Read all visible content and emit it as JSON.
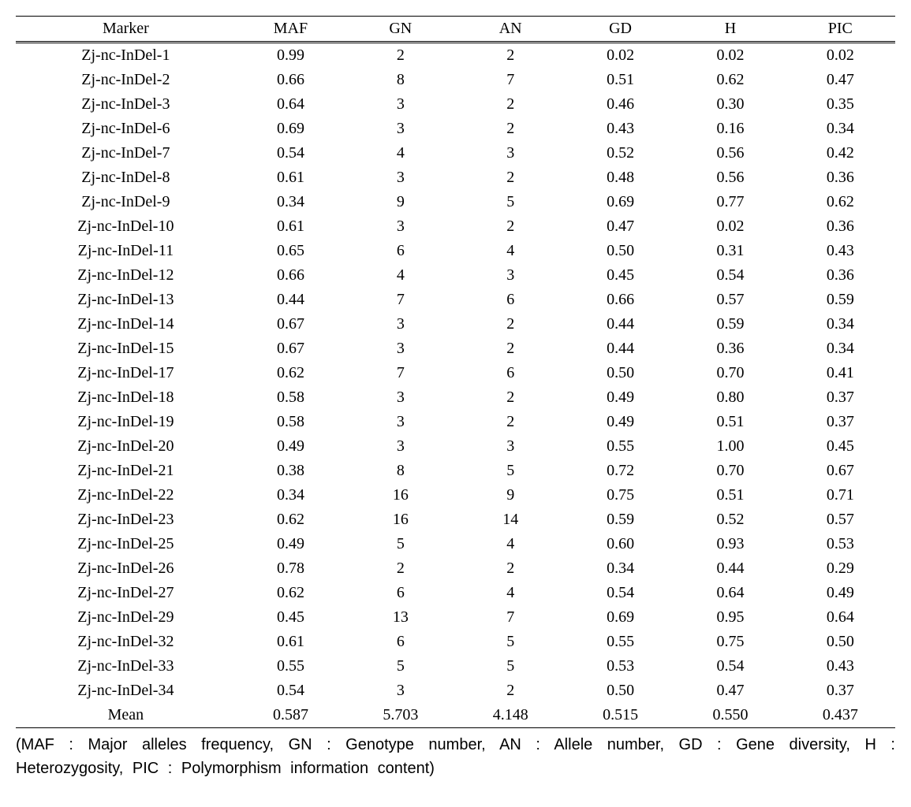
{
  "table": {
    "columns": [
      "Marker",
      "MAF",
      "GN",
      "AN",
      "GD",
      "H",
      "PIC"
    ],
    "col_widths_pct": [
      24,
      12,
      12,
      12,
      12,
      12,
      12
    ],
    "rows": [
      [
        "Zj-nc-InDel-1",
        "0.99",
        "2",
        "2",
        "0.02",
        "0.02",
        "0.02"
      ],
      [
        "Zj-nc-InDel-2",
        "0.66",
        "8",
        "7",
        "0.51",
        "0.62",
        "0.47"
      ],
      [
        "Zj-nc-InDel-3",
        "0.64",
        "3",
        "2",
        "0.46",
        "0.30",
        "0.35"
      ],
      [
        "Zj-nc-InDel-6",
        "0.69",
        "3",
        "2",
        "0.43",
        "0.16",
        "0.34"
      ],
      [
        "Zj-nc-InDel-7",
        "0.54",
        "4",
        "3",
        "0.52",
        "0.56",
        "0.42"
      ],
      [
        "Zj-nc-InDel-8",
        "0.61",
        "3",
        "2",
        "0.48",
        "0.56",
        "0.36"
      ],
      [
        "Zj-nc-InDel-9",
        "0.34",
        "9",
        "5",
        "0.69",
        "0.77",
        "0.62"
      ],
      [
        "Zj-nc-InDel-10",
        "0.61",
        "3",
        "2",
        "0.47",
        "0.02",
        "0.36"
      ],
      [
        "Zj-nc-InDel-11",
        "0.65",
        "6",
        "4",
        "0.50",
        "0.31",
        "0.43"
      ],
      [
        "Zj-nc-InDel-12",
        "0.66",
        "4",
        "3",
        "0.45",
        "0.54",
        "0.36"
      ],
      [
        "Zj-nc-InDel-13",
        "0.44",
        "7",
        "6",
        "0.66",
        "0.57",
        "0.59"
      ],
      [
        "Zj-nc-InDel-14",
        "0.67",
        "3",
        "2",
        "0.44",
        "0.59",
        "0.34"
      ],
      [
        "Zj-nc-InDel-15",
        "0.67",
        "3",
        "2",
        "0.44",
        "0.36",
        "0.34"
      ],
      [
        "Zj-nc-InDel-17",
        "0.62",
        "7",
        "6",
        "0.50",
        "0.70",
        "0.41"
      ],
      [
        "Zj-nc-InDel-18",
        "0.58",
        "3",
        "2",
        "0.49",
        "0.80",
        "0.37"
      ],
      [
        "Zj-nc-InDel-19",
        "0.58",
        "3",
        "2",
        "0.49",
        "0.51",
        "0.37"
      ],
      [
        "Zj-nc-InDel-20",
        "0.49",
        "3",
        "3",
        "0.55",
        "1.00",
        "0.45"
      ],
      [
        "Zj-nc-InDel-21",
        "0.38",
        "8",
        "5",
        "0.72",
        "0.70",
        "0.67"
      ],
      [
        "Zj-nc-InDel-22",
        "0.34",
        "16",
        "9",
        "0.75",
        "0.51",
        "0.71"
      ],
      [
        "Zj-nc-InDel-23",
        "0.62",
        "16",
        "14",
        "0.59",
        "0.52",
        "0.57"
      ],
      [
        "Zj-nc-InDel-25",
        "0.49",
        "5",
        "4",
        "0.60",
        "0.93",
        "0.53"
      ],
      [
        "Zj-nc-InDel-26",
        "0.78",
        "2",
        "2",
        "0.34",
        "0.44",
        "0.29"
      ],
      [
        "Zj-nc-InDel-27",
        "0.62",
        "6",
        "4",
        "0.54",
        "0.64",
        "0.49"
      ],
      [
        "Zj-nc-InDel-29",
        "0.45",
        "13",
        "7",
        "0.69",
        "0.95",
        "0.64"
      ],
      [
        "Zj-nc-InDel-32",
        "0.61",
        "6",
        "5",
        "0.55",
        "0.75",
        "0.50"
      ],
      [
        "Zj-nc-InDel-33",
        "0.55",
        "5",
        "5",
        "0.53",
        "0.54",
        "0.43"
      ],
      [
        "Zj-nc-InDel-34",
        "0.54",
        "3",
        "2",
        "0.50",
        "0.47",
        "0.37"
      ]
    ],
    "mean_row": [
      "Mean",
      "0.587",
      "5.703",
      "4.148",
      "0.515",
      "0.550",
      "0.437"
    ]
  },
  "caption_text": "(MAF : Major alleles frequency, GN : Genotype number, AN : Allele number, GD : Gene diversity, H : Heterozygosity, PIC : Polymorphism information content)",
  "style": {
    "font_family": "Times New Roman",
    "font_size_pt": 20,
    "text_color": "#000000",
    "background_color": "#ffffff",
    "rule_color": "#000000"
  }
}
